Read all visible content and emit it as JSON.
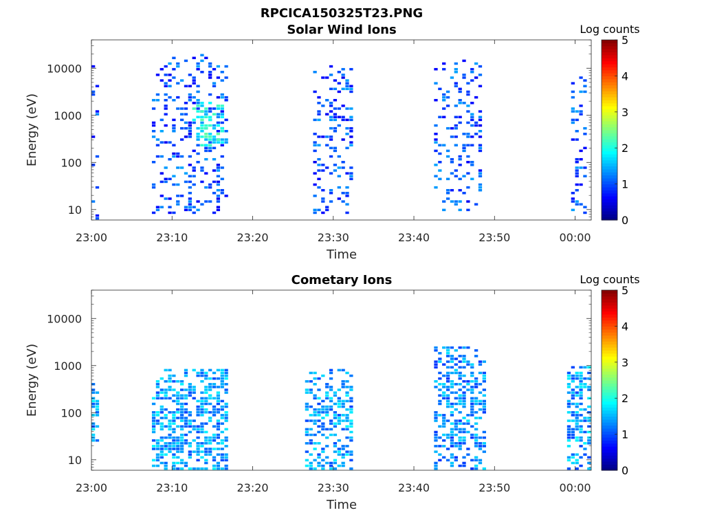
{
  "figure": {
    "title": "RPCICA150325T23.PNG"
  },
  "chart_data": [
    {
      "type": "heatmap",
      "title": "Solar Wind Ions",
      "xlabel": "Time",
      "ylabel": "Energy (eV)",
      "x_ticks": [
        "23:00",
        "23:10",
        "23:20",
        "23:30",
        "23:40",
        "23:50",
        "00:00"
      ],
      "y_ticks": [
        "10",
        "100",
        "1000",
        "10000"
      ],
      "y_scale": "log",
      "ylim": [
        6,
        40000
      ],
      "xlim_minutes": [
        0,
        62
      ],
      "colorbar": {
        "label": "Log counts",
        "ticks": [
          "0",
          "1",
          "2",
          "3",
          "4",
          "5"
        ],
        "range": [
          0,
          5
        ],
        "colormap": "jet"
      },
      "bursts": [
        {
          "t0": 0,
          "t1": 1,
          "emin": 6,
          "emax": 12000,
          "level": 0.9,
          "density": 0.18
        },
        {
          "t0": 7.5,
          "t1": 17,
          "emin": 8,
          "emax": 20000,
          "level": 1.0,
          "density": 0.22
        },
        {
          "t0": 12.5,
          "t1": 16.5,
          "emin": 200,
          "emax": 2000,
          "level": 1.9,
          "density": 0.35
        },
        {
          "t0": 27.5,
          "t1": 32.5,
          "emin": 8,
          "emax": 12000,
          "level": 1.0,
          "density": 0.22
        },
        {
          "t0": 29.5,
          "t1": 30.5,
          "emin": 1300,
          "emax": 2000,
          "level": 2.0,
          "density": 0.5
        },
        {
          "t0": 42.5,
          "t1": 48.5,
          "emin": 8,
          "emax": 15000,
          "level": 1.0,
          "density": 0.22
        },
        {
          "t0": 59.5,
          "t1": 61.5,
          "emin": 8,
          "emax": 8000,
          "level": 1.0,
          "density": 0.22
        }
      ]
    },
    {
      "type": "heatmap",
      "title": "Cometary Ions",
      "xlabel": "Time",
      "ylabel": "Energy (eV)",
      "x_ticks": [
        "23:00",
        "23:10",
        "23:20",
        "23:30",
        "23:40",
        "23:50",
        "00:00"
      ],
      "y_ticks": [
        "10",
        "100",
        "1000",
        "10000"
      ],
      "y_scale": "log",
      "ylim": [
        6,
        40000
      ],
      "xlim_minutes": [
        0,
        62
      ],
      "colorbar": {
        "label": "Log counts",
        "ticks": [
          "0",
          "1",
          "2",
          "3",
          "4",
          "5"
        ],
        "range": [
          0,
          5
        ],
        "colormap": "jet"
      },
      "bursts": [
        {
          "t0": 0,
          "t1": 1,
          "emin": 25,
          "emax": 400,
          "level": 1.4,
          "density": 0.55
        },
        {
          "t0": 7.5,
          "t1": 17,
          "emin": 6,
          "emax": 800,
          "level": 1.4,
          "density": 0.5
        },
        {
          "t0": 26.5,
          "t1": 32.5,
          "emin": 6,
          "emax": 900,
          "level": 1.4,
          "density": 0.45
        },
        {
          "t0": 42.5,
          "t1": 49,
          "emin": 6,
          "emax": 2500,
          "level": 1.3,
          "density": 0.45
        },
        {
          "t0": 59,
          "t1": 61.8,
          "emin": 6,
          "emax": 1000,
          "level": 1.4,
          "density": 0.5
        }
      ]
    }
  ]
}
